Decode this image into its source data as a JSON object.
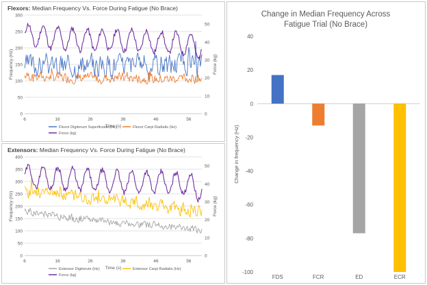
{
  "colors": {
    "fds": "#4472c4",
    "fcr": "#ed7d31",
    "force": "#7030a0",
    "ed": "#a5a5a5",
    "ecr": "#ffc000",
    "grid": "#d9d9d9",
    "axis_text": "#595959"
  },
  "chart_data": [
    {
      "type": "line",
      "title_prefix": "Flexors:",
      "title": "Median Frequency Vs. Force During Fatigue (No Brace)",
      "xlabel": "Time (s)",
      "ylabel": "Frequency (Hz)",
      "y2label": "Force (kg)",
      "xlim": [
        6,
        60
      ],
      "xticks": [
        6,
        16,
        26,
        36,
        46,
        56
      ],
      "ylim": [
        0,
        300
      ],
      "yticks": [
        0,
        50,
        100,
        150,
        200,
        250,
        300
      ],
      "y2lim": [
        0,
        55
      ],
      "y2ticks": [
        0,
        10,
        20,
        30,
        40,
        50
      ],
      "grid": true,
      "legend_position": "bottom",
      "series": [
        {
          "name": "Flexor Digitorum Superficialis (Hz)",
          "color_key": "fds",
          "axis": "left",
          "baseline": [
            [
              6,
              150
            ],
            [
              16,
              145
            ],
            [
              26,
              145
            ],
            [
              36,
              150
            ],
            [
              46,
              150
            ],
            [
              56,
              155
            ],
            [
              60,
              155
            ]
          ],
          "noise": 30,
          "seed": 3
        },
        {
          "name": "Flexor Carpi Radialis (Hz)",
          "color_key": "fcr",
          "axis": "left",
          "baseline": [
            [
              6,
              115
            ],
            [
              16,
              110
            ],
            [
              26,
              108
            ],
            [
              36,
              110
            ],
            [
              46,
              105
            ],
            [
              56,
              108
            ],
            [
              60,
              110
            ]
          ],
          "noise": 14,
          "seed": 7
        },
        {
          "name": "Force (kg)",
          "color_key": "force",
          "axis": "right",
          "baseline": [
            [
              6,
              44
            ],
            [
              16,
              42
            ],
            [
              26,
              41
            ],
            [
              36,
              41
            ],
            [
              46,
              40
            ],
            [
              56,
              39
            ],
            [
              60,
              36
            ]
          ],
          "wave_amp": 6,
          "wave_period": 4.5,
          "noise": 1.5,
          "seed": 11
        }
      ]
    },
    {
      "type": "line",
      "title_prefix": "Extensors:",
      "title": "Median Frequency Vs. Force During Fatigue (No Brace)",
      "xlabel": "Time (s)",
      "ylabel": "Frequency (Hz)",
      "y2label": "Force (kg)",
      "xlim": [
        6,
        60
      ],
      "xticks": [
        6,
        16,
        26,
        36,
        46,
        56
      ],
      "ylim": [
        0,
        400
      ],
      "yticks": [
        0,
        50,
        100,
        150,
        200,
        250,
        300,
        350,
        400
      ],
      "y2lim": [
        0,
        55
      ],
      "y2ticks": [
        0,
        10,
        20,
        30,
        40,
        50
      ],
      "grid": true,
      "legend_position": "bottom",
      "series": [
        {
          "name": "Extensor Digitorum (Hz)",
          "color_key": "ed",
          "axis": "left",
          "baseline": [
            [
              6,
              180
            ],
            [
              16,
              160
            ],
            [
              26,
              145
            ],
            [
              36,
              130
            ],
            [
              46,
              125
            ],
            [
              56,
              110
            ],
            [
              60,
              100
            ]
          ],
          "noise": 14,
          "seed": 19
        },
        {
          "name": "Extensor Carpi Radialis (Hz)",
          "color_key": "ecr",
          "axis": "left",
          "baseline": [
            [
              6,
              260
            ],
            [
              16,
              250
            ],
            [
              26,
              235
            ],
            [
              36,
              220
            ],
            [
              46,
              205
            ],
            [
              56,
              185
            ],
            [
              60,
              180
            ]
          ],
          "noise": 24,
          "seed": 23
        },
        {
          "name": "Force (kg)",
          "color_key": "force",
          "axis": "right",
          "baseline": [
            [
              6,
              44
            ],
            [
              16,
              43
            ],
            [
              26,
              42
            ],
            [
              36,
              41
            ],
            [
              46,
              41
            ],
            [
              56,
              40
            ],
            [
              60,
              36
            ]
          ],
          "wave_amp": 6,
          "wave_period": 4.5,
          "noise": 1.5,
          "seed": 29
        }
      ]
    },
    {
      "type": "bar",
      "title": "Change in Median Frequency Across Fatigue Trial (No Brace)",
      "ylabel": "Change in frequency (Hz)",
      "categories": [
        "FDS",
        "FCR",
        "ED",
        "ECR"
      ],
      "values": [
        17,
        -13,
        -77,
        -100
      ],
      "color_keys": [
        "fds",
        "fcr",
        "ed",
        "ecr"
      ],
      "ylim": [
        -100,
        40
      ],
      "yticks": [
        -100,
        -80,
        -60,
        -40,
        -20,
        0,
        20,
        40
      ],
      "grid": false
    }
  ]
}
